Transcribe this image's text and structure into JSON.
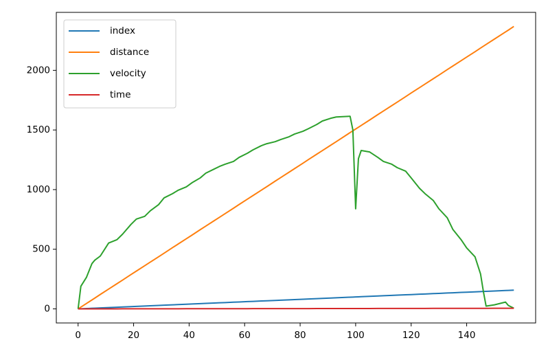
{
  "chart_data": {
    "type": "line",
    "x": [
      0,
      1,
      3,
      5,
      6,
      8,
      11,
      14,
      16,
      19,
      21,
      24,
      26,
      29,
      31,
      34,
      36,
      39,
      41,
      44,
      46,
      49,
      51,
      53,
      56,
      58,
      61,
      63,
      66,
      68,
      71,
      73,
      76,
      78,
      81,
      83,
      86,
      88,
      91,
      93,
      98,
      99,
      100,
      101,
      102,
      105,
      108,
      110,
      113,
      115,
      118,
      120,
      123,
      125,
      128,
      130,
      133,
      135,
      138,
      140,
      143,
      145,
      146,
      147,
      150,
      154,
      155,
      157
    ],
    "series": [
      {
        "name": "index",
        "color": "#1f77b4",
        "values": [
          0,
          1,
          3,
          5,
          6,
          8,
          11,
          14,
          16,
          19,
          21,
          24,
          26,
          29,
          31,
          34,
          36,
          39,
          41,
          44,
          46,
          49,
          51,
          53,
          56,
          58,
          61,
          63,
          66,
          68,
          71,
          73,
          76,
          78,
          81,
          83,
          86,
          88,
          91,
          93,
          98,
          99,
          100,
          101,
          102,
          105,
          108,
          110,
          113,
          115,
          118,
          120,
          123,
          125,
          128,
          130,
          133,
          135,
          138,
          140,
          143,
          145,
          146,
          147,
          150,
          154,
          155,
          157
        ]
      },
      {
        "name": "distance",
        "color": "#ff7f0e",
        "values": [
          0,
          15,
          45,
          75,
          90,
          121,
          166,
          211,
          241,
          287,
          317,
          362,
          392,
          437,
          467,
          513,
          543,
          588,
          618,
          664,
          694,
          739,
          769,
          799,
          844,
          875,
          920,
          950,
          995,
          1025,
          1071,
          1101,
          1146,
          1176,
          1221,
          1252,
          1297,
          1327,
          1372,
          1402,
          1478,
          1493,
          1508,
          1523,
          1538,
          1583,
          1629,
          1659,
          1704,
          1734,
          1779,
          1810,
          1855,
          1885,
          1930,
          1960,
          2006,
          2036,
          2081,
          2111,
          2156,
          2187,
          2202,
          2217,
          2262,
          2322,
          2337,
          2368
        ]
      },
      {
        "name": "velocity",
        "color": "#2ca02c",
        "values": [
          0,
          190,
          264,
          380,
          408,
          443,
          552,
          580,
          626,
          707,
          753,
          776,
          822,
          874,
          931,
          966,
          994,
          1023,
          1057,
          1098,
          1138,
          1172,
          1195,
          1213,
          1236,
          1270,
          1305,
          1333,
          1368,
          1385,
          1402,
          1420,
          1443,
          1466,
          1489,
          1511,
          1546,
          1575,
          1598,
          1609,
          1615,
          1500,
          839,
          1259,
          1328,
          1316,
          1270,
          1236,
          1213,
          1184,
          1155,
          1098,
          1011,
          966,
          908,
          839,
          764,
          667,
          580,
          511,
          437,
          293,
          149,
          23,
          34,
          57,
          29,
          6
        ]
      },
      {
        "name": "time",
        "color": "#d62728",
        "values": [
          0,
          0,
          0.1,
          0.2,
          0.2,
          0.3,
          0.3,
          0.4,
          0.5,
          0.6,
          0.7,
          0.8,
          0.8,
          0.9,
          1,
          1.1,
          1.1,
          1.2,
          1.3,
          1.4,
          1.5,
          1.6,
          1.6,
          1.7,
          1.8,
          1.8,
          1.9,
          2,
          2.1,
          2.2,
          2.3,
          2.3,
          2.4,
          2.5,
          2.6,
          2.6,
          2.7,
          2.8,
          2.9,
          3,
          3.1,
          3.1,
          3.2,
          3.2,
          3.2,
          3.3,
          3.4,
          3.5,
          3.6,
          3.7,
          3.8,
          3.8,
          3.9,
          4,
          4.1,
          4.1,
          4.2,
          4.3,
          4.4,
          4.5,
          4.5,
          4.6,
          4.6,
          4.7,
          4.8,
          4.9,
          4.9,
          5
        ]
      }
    ],
    "xlim": [
      -7.85,
      164.85
    ],
    "xticks": [
      0,
      20,
      40,
      60,
      80,
      100,
      120,
      140
    ],
    "ylim": [
      -118,
      2486
    ],
    "yticks": [
      0,
      500,
      1000,
      1500,
      2000
    ],
    "legend": "upper left"
  }
}
